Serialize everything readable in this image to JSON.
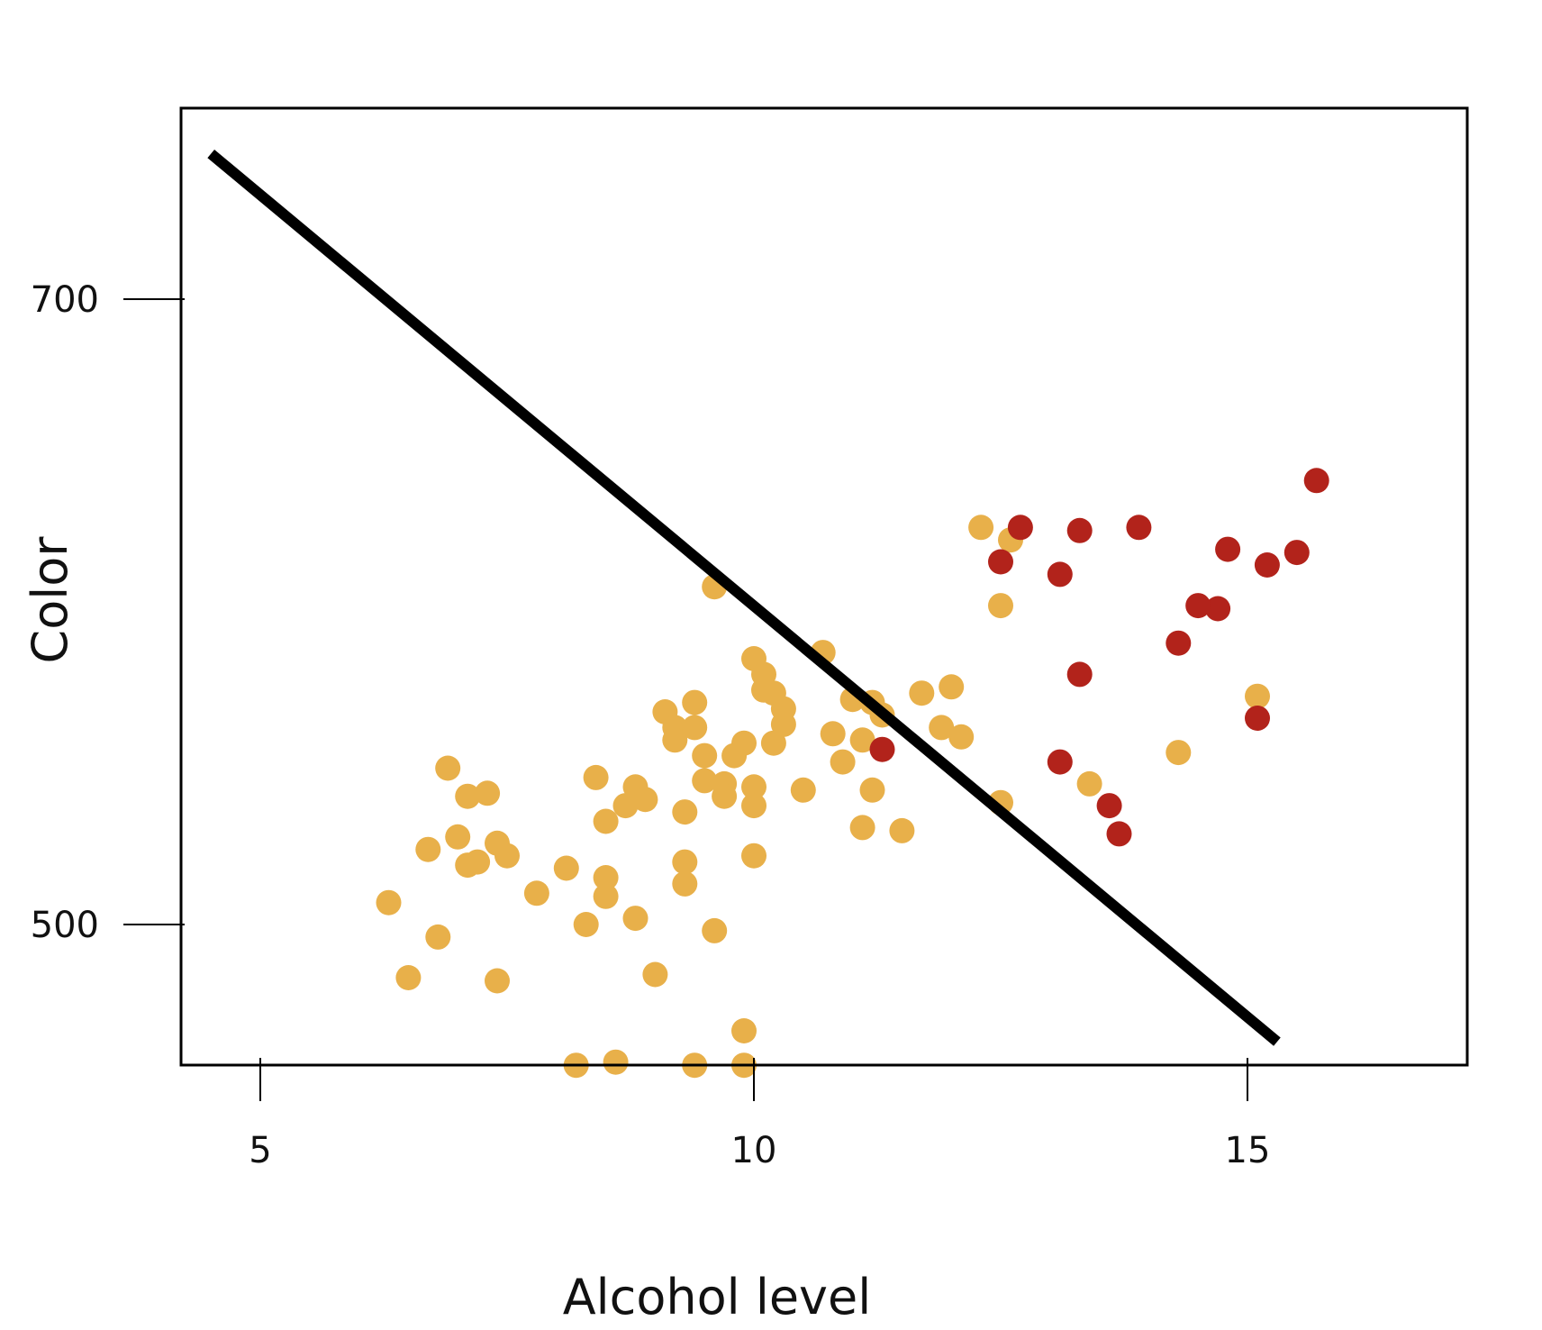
{
  "chart_data": {
    "type": "scatter",
    "title": "",
    "xlabel": "Alcohol level",
    "ylabel": "Color",
    "xlim": [
      4.2,
      17.2
    ],
    "ylim": [
      455,
      760
    ],
    "x_ticks": [
      5,
      10,
      15
    ],
    "y_ticks": [
      500,
      700
    ],
    "grid": false,
    "legend": "none",
    "colors": {
      "class_a": "#e8b04a",
      "class_b": "#b2231b",
      "boundary": "#000000"
    },
    "decision_boundary": [
      [
        4.5,
        746.5
      ],
      [
        15.3,
        462.5
      ]
    ],
    "series": [
      {
        "color": "#e8b04a",
        "points": [
          [
            6.3,
            507
          ],
          [
            6.5,
            483
          ],
          [
            6.7,
            524
          ],
          [
            6.8,
            496
          ],
          [
            6.9,
            550
          ],
          [
            7.0,
            528
          ],
          [
            7.1,
            519
          ],
          [
            7.1,
            541
          ],
          [
            7.2,
            520
          ],
          [
            7.3,
            542
          ],
          [
            7.4,
            482
          ],
          [
            7.4,
            526
          ],
          [
            7.5,
            522
          ],
          [
            7.8,
            510
          ],
          [
            8.1,
            518
          ],
          [
            8.2,
            455
          ],
          [
            8.3,
            500
          ],
          [
            8.4,
            547
          ],
          [
            8.5,
            515
          ],
          [
            8.5,
            509
          ],
          [
            8.5,
            533
          ],
          [
            8.6,
            456
          ],
          [
            8.7,
            538
          ],
          [
            8.8,
            544
          ],
          [
            8.8,
            502
          ],
          [
            8.9,
            540
          ],
          [
            9.0,
            484
          ],
          [
            9.1,
            568
          ],
          [
            9.2,
            563
          ],
          [
            9.2,
            559
          ],
          [
            9.3,
            513
          ],
          [
            9.3,
            536
          ],
          [
            9.3,
            520
          ],
          [
            9.4,
            455
          ],
          [
            9.4,
            563
          ],
          [
            9.4,
            571
          ],
          [
            9.5,
            546
          ],
          [
            9.5,
            554
          ],
          [
            9.6,
            608
          ],
          [
            9.6,
            498
          ],
          [
            9.7,
            545
          ],
          [
            9.7,
            541
          ],
          [
            9.8,
            554
          ],
          [
            9.9,
            558
          ],
          [
            9.9,
            466
          ],
          [
            9.9,
            455
          ],
          [
            10.0,
            544
          ],
          [
            10.0,
            522
          ],
          [
            10.0,
            538
          ],
          [
            10.0,
            585
          ],
          [
            10.1,
            580
          ],
          [
            10.1,
            575
          ],
          [
            10.2,
            574
          ],
          [
            10.2,
            558
          ],
          [
            10.3,
            569
          ],
          [
            10.3,
            564
          ],
          [
            10.5,
            543
          ],
          [
            10.7,
            587
          ],
          [
            10.8,
            561
          ],
          [
            10.9,
            552
          ],
          [
            11.0,
            572
          ],
          [
            11.1,
            559
          ],
          [
            11.1,
            531
          ],
          [
            11.2,
            543
          ],
          [
            11.2,
            571
          ],
          [
            11.3,
            567
          ],
          [
            11.5,
            530
          ],
          [
            11.7,
            574
          ],
          [
            11.9,
            563
          ],
          [
            12.0,
            576
          ],
          [
            12.5,
            539
          ],
          [
            12.1,
            560
          ],
          [
            12.3,
            627
          ],
          [
            12.5,
            602
          ],
          [
            12.6,
            623
          ],
          [
            13.4,
            545
          ],
          [
            14.3,
            555
          ],
          [
            15.1,
            573
          ]
        ]
      },
      {
        "color": "#b2231b",
        "points": [
          [
            11.3,
            556
          ],
          [
            12.7,
            627
          ],
          [
            13.3,
            626
          ],
          [
            12.5,
            616
          ],
          [
            13.1,
            612
          ],
          [
            13.3,
            580
          ],
          [
            13.7,
            529
          ],
          [
            13.9,
            627
          ],
          [
            14.3,
            590
          ],
          [
            14.7,
            601
          ],
          [
            14.8,
            620
          ],
          [
            15.5,
            619
          ],
          [
            15.7,
            642
          ],
          [
            13.1,
            552
          ],
          [
            13.6,
            538
          ],
          [
            14.5,
            602
          ],
          [
            15.2,
            615
          ],
          [
            15.1,
            566
          ]
        ]
      }
    ]
  }
}
